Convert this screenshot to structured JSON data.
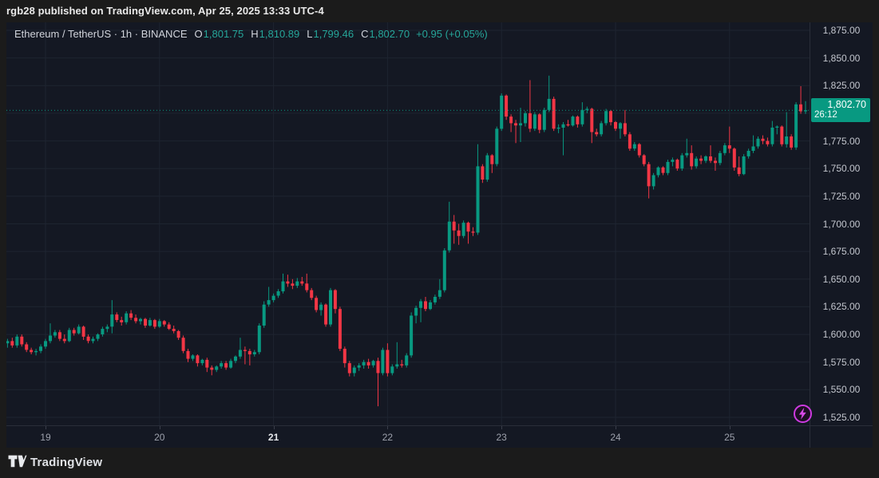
{
  "header": {
    "publish_line": "rgb28 published on TradingView.com, Apr 25, 2025 13:33 UTC-4"
  },
  "legend": {
    "title": "Ethereum / TetherUS · 1h · BINANCE",
    "ohlc": [
      {
        "label": "O",
        "value": "1,801.75"
      },
      {
        "label": "H",
        "value": "1,810.89"
      },
      {
        "label": "L",
        "value": "1,799.46"
      },
      {
        "label": "C",
        "value": "1,802.70"
      }
    ],
    "change": "+0.95 (+0.05%)"
  },
  "price_badge": {
    "price": "1,802.70",
    "countdown": "26:12",
    "price_value": 1802.7
  },
  "price_scale": {
    "labels": [
      {
        "value": 1875,
        "label": "1,875.00"
      },
      {
        "value": 1850,
        "label": "1,850.00"
      },
      {
        "value": 1825,
        "label": "1,825.00"
      },
      {
        "value": 1775,
        "label": "1,775.00"
      },
      {
        "value": 1750,
        "label": "1,750.00"
      },
      {
        "value": 1725,
        "label": "1,725.00"
      },
      {
        "value": 1700,
        "label": "1,700.00"
      },
      {
        "value": 1675,
        "label": "1,675.00"
      },
      {
        "value": 1650,
        "label": "1,650.00"
      },
      {
        "value": 1625,
        "label": "1,625.00"
      },
      {
        "value": 1600,
        "label": "1,600.00"
      },
      {
        "value": 1575,
        "label": "1,575.00"
      },
      {
        "value": 1550,
        "label": "1,550.00"
      },
      {
        "value": 1525,
        "label": "1,525.00"
      }
    ]
  },
  "time_scale": {
    "labels": [
      {
        "label": "19",
        "day_index": 0,
        "bold": false
      },
      {
        "label": "20",
        "day_index": 1,
        "bold": false
      },
      {
        "label": "21",
        "day_index": 2,
        "bold": true
      },
      {
        "label": "22",
        "day_index": 3,
        "bold": false
      },
      {
        "label": "23",
        "day_index": 4,
        "bold": false
      },
      {
        "label": "24",
        "day_index": 5,
        "bold": false
      },
      {
        "label": "25",
        "day_index": 6,
        "bold": false
      }
    ]
  },
  "footer": {
    "brand": "TradingView"
  },
  "colors": {
    "up": "#089981",
    "down": "#f23645",
    "legend_value": "#26a69a",
    "bg_panel": "#141823",
    "bg_outer": "#1b1b1b",
    "grid": "#1e2430",
    "separator": "#2a2e39",
    "badge_bg": "#089981",
    "flash": "#cd3ae0"
  },
  "chart_data": {
    "type": "candlestick",
    "title": "Ethereum / TetherUS",
    "symbol": "ETHUSDT",
    "exchange": "BINANCE",
    "interval": "1h",
    "last": {
      "open": 1801.75,
      "high": 1810.89,
      "low": 1799.46,
      "close": 1802.7,
      "change": 0.95,
      "change_pct": 0.05
    },
    "y_axis": {
      "min": 1525,
      "max": 1875,
      "tick_step": 25,
      "grid": true
    },
    "x_axis": {
      "day_labels": [
        "19",
        "20",
        "21",
        "22",
        "23",
        "24",
        "25"
      ],
      "candles_per_day": 24,
      "first_day_start_index": 8
    },
    "last_price_line": 1802.7,
    "candles_ohlc": [
      [
        1592,
        1596,
        1588,
        1594
      ],
      [
        1594,
        1597,
        1588,
        1590
      ],
      [
        1590,
        1600,
        1588,
        1598
      ],
      [
        1598,
        1600,
        1589,
        1591
      ],
      [
        1591,
        1593,
        1584,
        1586
      ],
      [
        1586,
        1588,
        1582,
        1584
      ],
      [
        1584,
        1587,
        1581,
        1585
      ],
      [
        1585,
        1591,
        1583,
        1589
      ],
      [
        1589,
        1596,
        1587,
        1594
      ],
      [
        1594,
        1610,
        1592,
        1599
      ],
      [
        1599,
        1604,
        1597,
        1602
      ],
      [
        1602,
        1604,
        1594,
        1596
      ],
      [
        1596,
        1600,
        1592,
        1594
      ],
      [
        1594,
        1606,
        1593,
        1604
      ],
      [
        1604,
        1606,
        1599,
        1601
      ],
      [
        1601,
        1609,
        1600,
        1607
      ],
      [
        1607,
        1608,
        1595,
        1598
      ],
      [
        1598,
        1600,
        1592,
        1594
      ],
      [
        1594,
        1598,
        1592,
        1596
      ],
      [
        1596,
        1601,
        1594,
        1600
      ],
      [
        1600,
        1607,
        1598,
        1605
      ],
      [
        1605,
        1609,
        1602,
        1607
      ],
      [
        1607,
        1631,
        1601,
        1618
      ],
      [
        1618,
        1620,
        1611,
        1613
      ],
      [
        1613,
        1616,
        1608,
        1611
      ],
      [
        1611,
        1621,
        1609,
        1619
      ],
      [
        1619,
        1622,
        1613,
        1615
      ],
      [
        1615,
        1618,
        1610,
        1612
      ],
      [
        1612,
        1615,
        1609,
        1614
      ],
      [
        1614,
        1615,
        1606,
        1608
      ],
      [
        1608,
        1615,
        1607,
        1613
      ],
      [
        1613,
        1614,
        1605,
        1607
      ],
      [
        1607,
        1614,
        1606,
        1612
      ],
      [
        1612,
        1613,
        1607,
        1609
      ],
      [
        1609,
        1611,
        1604,
        1605
      ],
      [
        1605,
        1608,
        1601,
        1603
      ],
      [
        1603,
        1604,
        1595,
        1597
      ],
      [
        1597,
        1599,
        1583,
        1585
      ],
      [
        1585,
        1587,
        1575,
        1578
      ],
      [
        1578,
        1582,
        1576,
        1581
      ],
      [
        1581,
        1582,
        1571,
        1574
      ],
      [
        1574,
        1578,
        1572,
        1577
      ],
      [
        1577,
        1579,
        1566,
        1570
      ],
      [
        1570,
        1572,
        1563,
        1568
      ],
      [
        1568,
        1572,
        1566,
        1571
      ],
      [
        1571,
        1576,
        1569,
        1574
      ],
      [
        1574,
        1576,
        1568,
        1570
      ],
      [
        1570,
        1578,
        1569,
        1576
      ],
      [
        1576,
        1581,
        1574,
        1580
      ],
      [
        1580,
        1597,
        1578,
        1586
      ],
      [
        1586,
        1589,
        1573,
        1585
      ],
      [
        1585,
        1587,
        1572,
        1582
      ],
      [
        1582,
        1586,
        1580,
        1584
      ],
      [
        1584,
        1610,
        1582,
        1608
      ],
      [
        1608,
        1630,
        1606,
        1627
      ],
      [
        1627,
        1643,
        1625,
        1631
      ],
      [
        1631,
        1637,
        1629,
        1635
      ],
      [
        1635,
        1641,
        1633,
        1639
      ],
      [
        1639,
        1655,
        1637,
        1648
      ],
      [
        1648,
        1654,
        1643,
        1646
      ],
      [
        1646,
        1650,
        1641,
        1644
      ],
      [
        1644,
        1651,
        1642,
        1648
      ],
      [
        1648,
        1652,
        1644,
        1646
      ],
      [
        1646,
        1655,
        1638,
        1640
      ],
      [
        1640,
        1642,
        1631,
        1633
      ],
      [
        1633,
        1635,
        1620,
        1622
      ],
      [
        1622,
        1629,
        1617,
        1627
      ],
      [
        1627,
        1628,
        1607,
        1609
      ],
      [
        1609,
        1642,
        1607,
        1640
      ],
      [
        1640,
        1641,
        1619,
        1623
      ],
      [
        1623,
        1625,
        1585,
        1587
      ],
      [
        1587,
        1589,
        1570,
        1574
      ],
      [
        1574,
        1576,
        1562,
        1565
      ],
      [
        1565,
        1572,
        1562,
        1570
      ],
      [
        1570,
        1574,
        1567,
        1572
      ],
      [
        1572,
        1577,
        1569,
        1575
      ],
      [
        1575,
        1578,
        1569,
        1572
      ],
      [
        1572,
        1577,
        1570,
        1576
      ],
      [
        1576,
        1579,
        1535,
        1565
      ],
      [
        1565,
        1588,
        1563,
        1586
      ],
      [
        1586,
        1592,
        1562,
        1565
      ],
      [
        1565,
        1573,
        1563,
        1571
      ],
      [
        1571,
        1593,
        1569,
        1573
      ],
      [
        1573,
        1577,
        1570,
        1572
      ],
      [
        1572,
        1583,
        1570,
        1581
      ],
      [
        1581,
        1620,
        1579,
        1617
      ],
      [
        1617,
        1626,
        1610,
        1624
      ],
      [
        1624,
        1632,
        1611,
        1630
      ],
      [
        1630,
        1634,
        1621,
        1623
      ],
      [
        1623,
        1631,
        1622,
        1629
      ],
      [
        1629,
        1636,
        1627,
        1634
      ],
      [
        1634,
        1650,
        1632,
        1640
      ],
      [
        1640,
        1678,
        1638,
        1676
      ],
      [
        1676,
        1720,
        1674,
        1702
      ],
      [
        1702,
        1708,
        1682,
        1694
      ],
      [
        1694,
        1700,
        1681,
        1689
      ],
      [
        1689,
        1703,
        1687,
        1701
      ],
      [
        1701,
        1702,
        1682,
        1693
      ],
      [
        1693,
        1697,
        1689,
        1692
      ],
      [
        1692,
        1772,
        1690,
        1752
      ],
      [
        1752,
        1754,
        1737,
        1740
      ],
      [
        1740,
        1764,
        1738,
        1762
      ],
      [
        1762,
        1763,
        1746,
        1754
      ],
      [
        1754,
        1788,
        1752,
        1786
      ],
      [
        1786,
        1818,
        1784,
        1816
      ],
      [
        1816,
        1817,
        1794,
        1797
      ],
      [
        1797,
        1799,
        1783,
        1791
      ],
      [
        1791,
        1794,
        1773,
        1789
      ],
      [
        1789,
        1805,
        1774,
        1791
      ],
      [
        1791,
        1802,
        1788,
        1800
      ],
      [
        1800,
        1830,
        1783,
        1786
      ],
      [
        1786,
        1801,
        1784,
        1799
      ],
      [
        1799,
        1800,
        1782,
        1785
      ],
      [
        1785,
        1805,
        1783,
        1803
      ],
      [
        1803,
        1834,
        1801,
        1813
      ],
      [
        1813,
        1815,
        1784,
        1786
      ],
      [
        1786,
        1790,
        1782,
        1787
      ],
      [
        1787,
        1792,
        1762,
        1790
      ],
      [
        1790,
        1794,
        1788,
        1789
      ],
      [
        1789,
        1798,
        1788,
        1797
      ],
      [
        1797,
        1798,
        1787,
        1790
      ],
      [
        1790,
        1810,
        1788,
        1803
      ],
      [
        1803,
        1806,
        1800,
        1804
      ],
      [
        1804,
        1805,
        1773,
        1783
      ],
      [
        1783,
        1786,
        1779,
        1781
      ],
      [
        1781,
        1793,
        1779,
        1791
      ],
      [
        1791,
        1804,
        1789,
        1802
      ],
      [
        1802,
        1803,
        1789,
        1792
      ],
      [
        1792,
        1793,
        1784,
        1786
      ],
      [
        1786,
        1792,
        1777,
        1791
      ],
      [
        1791,
        1803,
        1779,
        1781
      ],
      [
        1781,
        1783,
        1766,
        1768
      ],
      [
        1768,
        1774,
        1766,
        1772
      ],
      [
        1772,
        1773,
        1760,
        1762
      ],
      [
        1762,
        1763,
        1752,
        1754
      ],
      [
        1754,
        1756,
        1723,
        1734
      ],
      [
        1734,
        1746,
        1731,
        1744
      ],
      [
        1744,
        1752,
        1742,
        1751
      ],
      [
        1751,
        1752,
        1744,
        1746
      ],
      [
        1746,
        1758,
        1744,
        1756
      ],
      [
        1756,
        1760,
        1752,
        1758
      ],
      [
        1758,
        1759,
        1748,
        1750
      ],
      [
        1750,
        1764,
        1748,
        1762
      ],
      [
        1762,
        1777,
        1760,
        1764
      ],
      [
        1764,
        1771,
        1749,
        1752
      ],
      [
        1752,
        1761,
        1750,
        1759
      ],
      [
        1759,
        1762,
        1754,
        1757
      ],
      [
        1757,
        1762,
        1755,
        1761
      ],
      [
        1761,
        1771,
        1755,
        1757
      ],
      [
        1757,
        1760,
        1748,
        1755
      ],
      [
        1755,
        1766,
        1753,
        1764
      ],
      [
        1764,
        1773,
        1762,
        1771
      ],
      [
        1771,
        1788,
        1764,
        1768
      ],
      [
        1768,
        1769,
        1748,
        1751
      ],
      [
        1751,
        1761,
        1743,
        1745
      ],
      [
        1745,
        1763,
        1744,
        1761
      ],
      [
        1761,
        1768,
        1759,
        1766
      ],
      [
        1766,
        1780,
        1764,
        1770
      ],
      [
        1770,
        1779,
        1768,
        1777
      ],
      [
        1777,
        1780,
        1772,
        1775
      ],
      [
        1775,
        1778,
        1770,
        1772
      ],
      [
        1772,
        1793,
        1770,
        1787
      ],
      [
        1787,
        1789,
        1781,
        1788
      ],
      [
        1788,
        1789,
        1770,
        1772
      ],
      [
        1772,
        1801,
        1769,
        1779
      ],
      [
        1779,
        1781,
        1767,
        1769
      ],
      [
        1769,
        1810,
        1767,
        1808
      ],
      [
        1808,
        1824.5,
        1799.5,
        1801.75
      ],
      [
        1801.75,
        1810.89,
        1799.46,
        1802.7
      ]
    ]
  }
}
